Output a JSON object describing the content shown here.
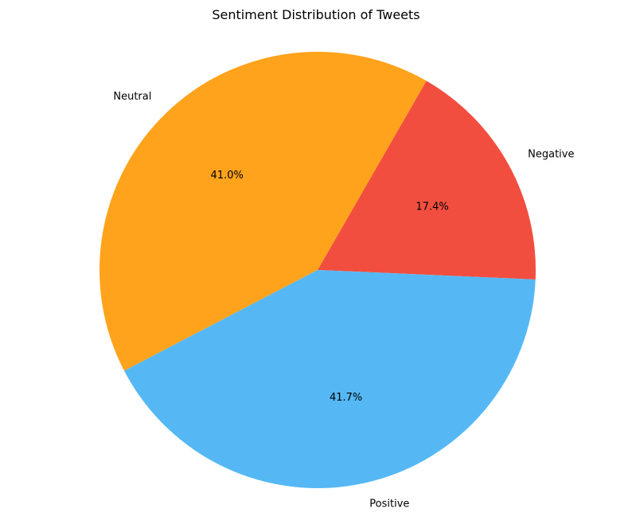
{
  "chart_data": {
    "type": "pie",
    "title": "Sentiment Distribution of Tweets",
    "slices": [
      {
        "label": "Negative",
        "value": 17.4,
        "display": "17.4%",
        "color": "#f24e3f"
      },
      {
        "label": "Neutral",
        "value": 41.0,
        "display": "41.0%",
        "color": "#ffa31c"
      },
      {
        "label": "Positive",
        "value": 41.7,
        "display": "41.7%",
        "color": "#55b8f5"
      }
    ]
  }
}
